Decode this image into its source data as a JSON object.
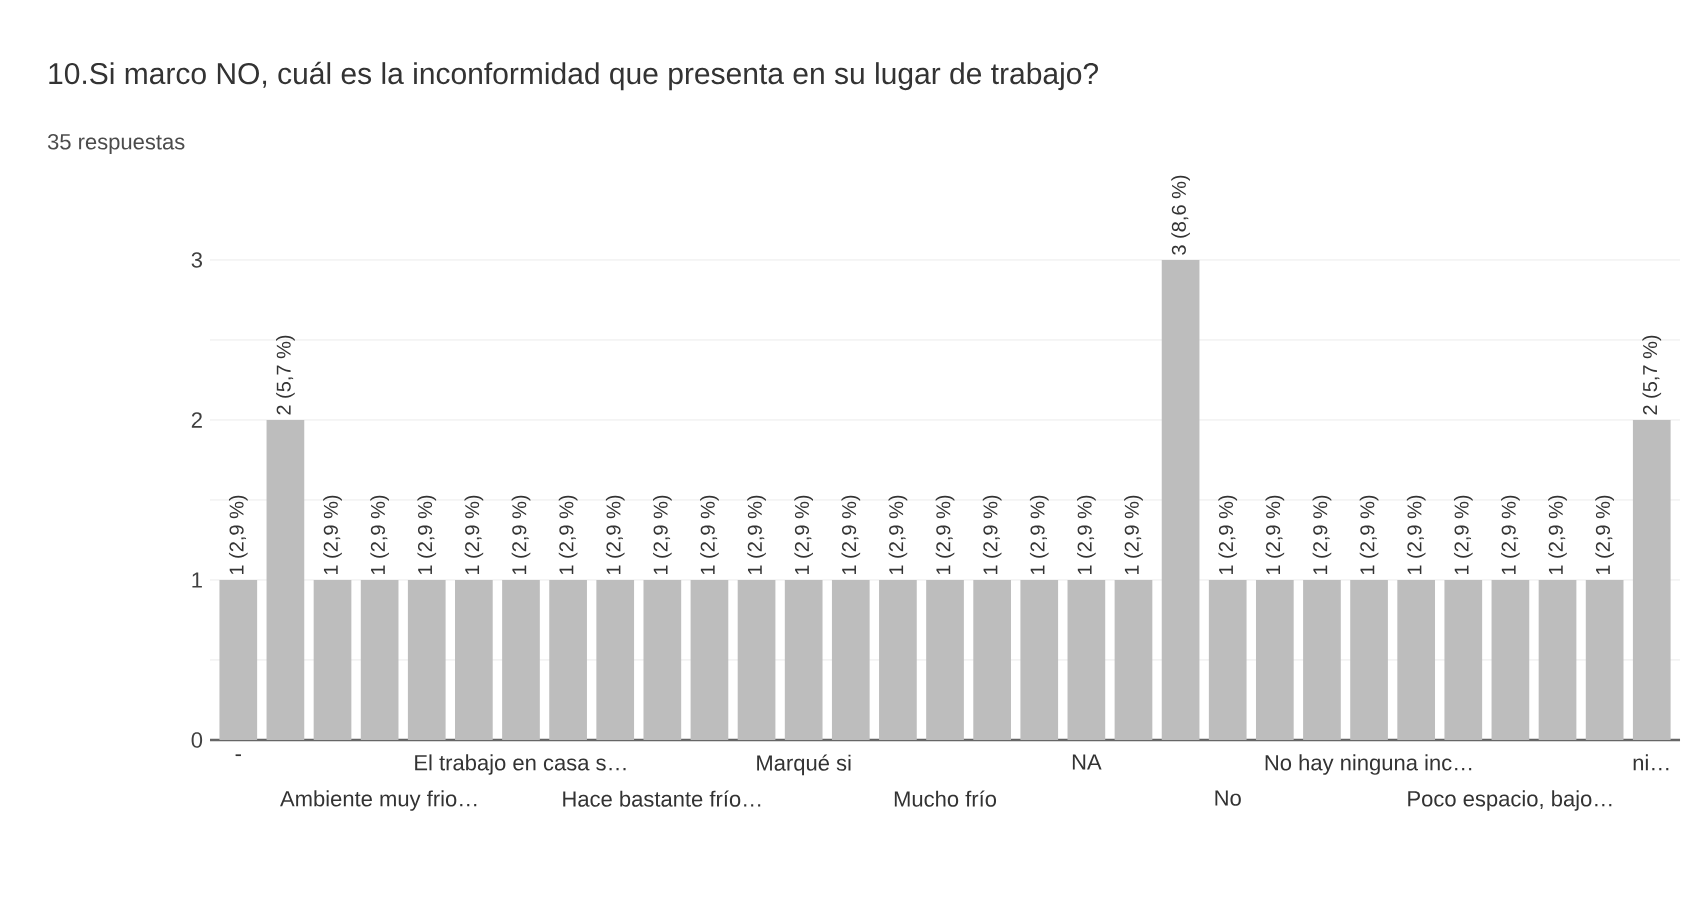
{
  "chart_data": {
    "type": "bar",
    "title": "10.Si marco NO, cuál es la inconformidad que presenta en su lugar de trabajo?",
    "subtitle": "35 respuestas",
    "categories": [
      "-",
      null,
      null,
      "Ambiente muy frio…",
      null,
      null,
      "El trabajo en casa s…",
      null,
      null,
      "Hace bastante frío…",
      null,
      null,
      "Marqué si",
      null,
      null,
      "Mucho frío",
      null,
      null,
      "NA",
      null,
      null,
      "No",
      null,
      null,
      "No hay ninguna inc…",
      null,
      null,
      "Poco espacio, bajo…",
      null,
      null,
      "ni…"
    ],
    "values": [
      1,
      2,
      1,
      1,
      1,
      1,
      1,
      1,
      1,
      1,
      1,
      1,
      1,
      1,
      1,
      1,
      1,
      1,
      1,
      1,
      3,
      1,
      1,
      1,
      1,
      1,
      1,
      1,
      1,
      1,
      2
    ],
    "value_labels": [
      "1 (2,9 %)",
      "2 (5,7 %)",
      "1 (2,9 %)",
      "1 (2,9 %)",
      "1 (2,9 %)",
      "1 (2,9 %)",
      "1 (2,9 %)",
      "1 (2,9 %)",
      "1 (2,9 %)",
      "1 (2,9 %)",
      "1 (2,9 %)",
      "1 (2,9 %)",
      "1 (2,9 %)",
      "1 (2,9 %)",
      "1 (2,9 %)",
      "1 (2,9 %)",
      "1 (2,9 %)",
      "1 (2,9 %)",
      "1 (2,9 %)",
      "1 (2,9 %)",
      "3 (8,6 %)",
      "1 (2,9 %)",
      "1 (2,9 %)",
      "1 (2,9 %)",
      "1 (2,9 %)",
      "1 (2,9 %)",
      "1 (2,9 %)",
      "1 (2,9 %)",
      "1 (2,9 %)",
      "1 (2,9 %)",
      "2 (5,7 %)"
    ],
    "color": "#bdbdbd",
    "ylim": [
      0,
      3
    ],
    "yticks": [
      0,
      {
        "value": 0.5,
        "label": null
      },
      1,
      {
        "value": 1.5,
        "label": null
      },
      2,
      {
        "value": 2.5,
        "label": null
      },
      3
    ],
    "grid": "y"
  }
}
